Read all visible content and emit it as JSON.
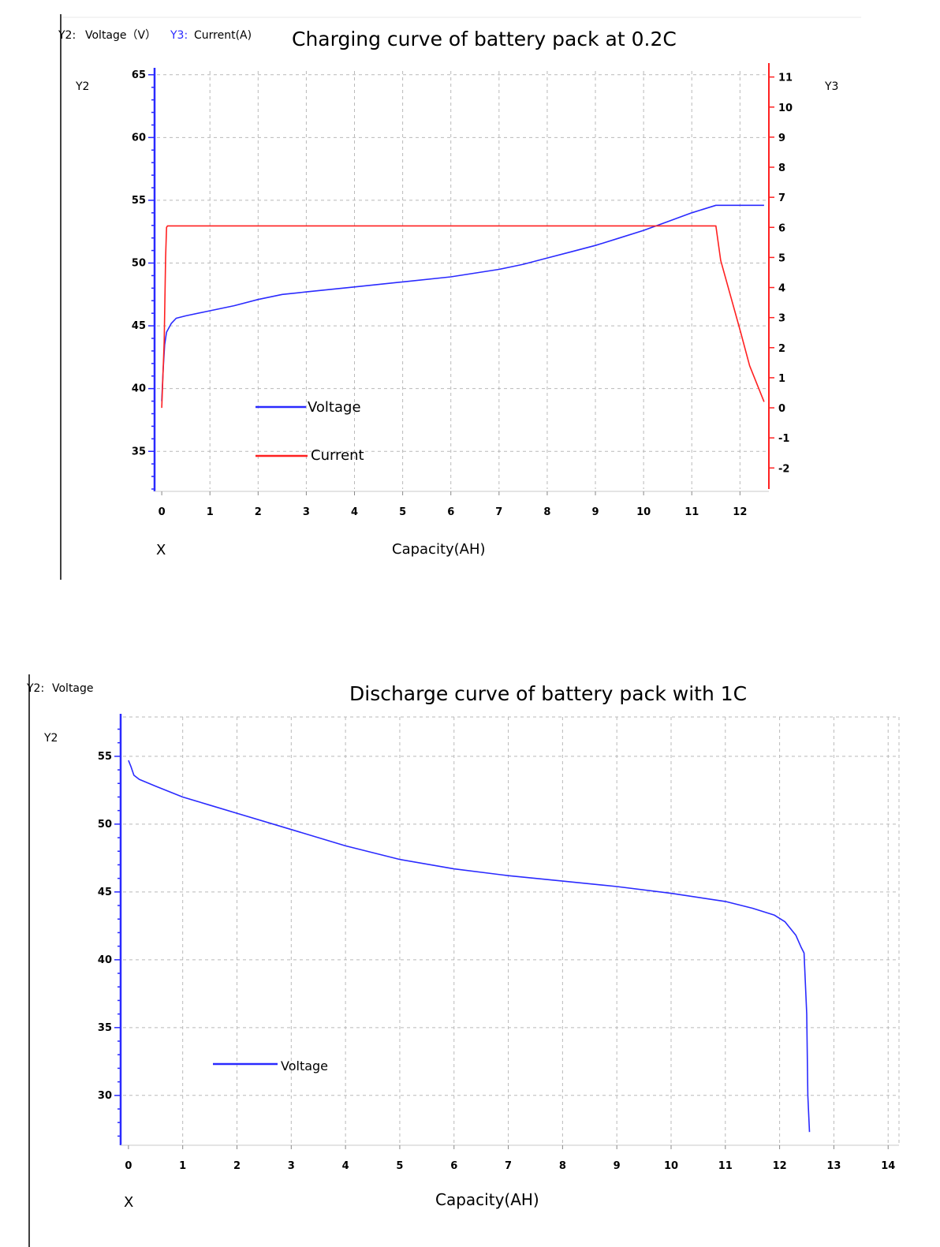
{
  "chart_data": [
    {
      "type": "line",
      "title": "Charging curve of battery pack at 0.2C",
      "header": {
        "y2_prefix": "Y2:",
        "y2_name": "Voltage（V）",
        "y3_prefix": "Y3:",
        "y3_name": "Current(A)"
      },
      "y2_axis_name": "Y2",
      "y3_axis_name": "Y3",
      "x_axis_name": "X",
      "xlabel": "Capacity(AH)",
      "xlim": [
        -0.1,
        12.6
      ],
      "y2lim": [
        32,
        65.3
      ],
      "y3lim": [
        -2.7,
        11.2
      ],
      "xticks": [
        0,
        1,
        2,
        3,
        4,
        5,
        6,
        7,
        8,
        9,
        10,
        11,
        12
      ],
      "y2ticks": [
        35,
        40,
        45,
        50,
        55,
        60,
        65
      ],
      "y3ticks": [
        -2,
        -1,
        0,
        1,
        2,
        3,
        4,
        5,
        6,
        7,
        8,
        9,
        10,
        11
      ],
      "grid": true,
      "legend_position": "lower-left",
      "series": [
        {
          "name": "Voltage",
          "axis": "y2",
          "color": "#2a2aff",
          "x": [
            0,
            0.03,
            0.06,
            0.1,
            0.2,
            0.3,
            0.5,
            1,
            1.5,
            2,
            2.5,
            3,
            4,
            5,
            6,
            7,
            7.5,
            8,
            8.5,
            9,
            9.5,
            10,
            10.5,
            11,
            11.5,
            11.8,
            12.5
          ],
          "y": [
            39,
            41.5,
            43.5,
            44.5,
            45.2,
            45.6,
            45.8,
            46.2,
            46.6,
            47.1,
            47.5,
            47.7,
            48.1,
            48.5,
            48.9,
            49.5,
            49.9,
            50.4,
            50.9,
            51.4,
            52.0,
            52.6,
            53.3,
            54.0,
            54.6,
            54.6,
            54.6
          ]
        },
        {
          "name": "Current",
          "axis": "y3",
          "color": "#ff2020",
          "x": [
            0,
            0.05,
            0.08,
            0.1,
            0.12,
            11.5,
            11.6,
            12.0,
            12.2,
            12.5
          ],
          "y": [
            0,
            2.2,
            5.0,
            6.0,
            6.05,
            6.05,
            4.9,
            2.6,
            1.4,
            0.2
          ]
        }
      ]
    },
    {
      "type": "line",
      "title": "Discharge curve of battery pack with 1C",
      "header": {
        "y2_prefix": "Y2:",
        "y2_name": "Voltage"
      },
      "y2_axis_name": "Y2",
      "x_axis_name": "X",
      "xlabel": "Capacity(AH)",
      "xlim": [
        -0.1,
        14.2
      ],
      "y2lim": [
        26.5,
        57.9
      ],
      "xticks": [
        0,
        1,
        2,
        3,
        4,
        5,
        6,
        7,
        8,
        9,
        10,
        11,
        12,
        13,
        14
      ],
      "y2ticks": [
        30,
        35,
        40,
        45,
        50,
        55
      ],
      "grid": true,
      "legend_position": "lower-left",
      "series": [
        {
          "name": "Voltage",
          "axis": "y2",
          "color": "#2a2aff",
          "x": [
            0,
            0.05,
            0.1,
            0.2,
            0.5,
            1,
            1.5,
            2,
            3,
            4,
            5,
            6,
            7,
            8,
            9,
            10,
            11,
            11.5,
            11.9,
            12.1,
            12.3,
            12.4,
            12.45,
            12.5,
            12.52,
            12.55
          ],
          "y": [
            54.7,
            54.2,
            53.6,
            53.3,
            52.8,
            52.0,
            51.4,
            50.8,
            49.6,
            48.4,
            47.4,
            46.7,
            46.2,
            45.8,
            45.4,
            44.9,
            44.3,
            43.8,
            43.3,
            42.8,
            41.8,
            40.9,
            40.5,
            36.0,
            30.0,
            27.3
          ]
        }
      ]
    }
  ]
}
